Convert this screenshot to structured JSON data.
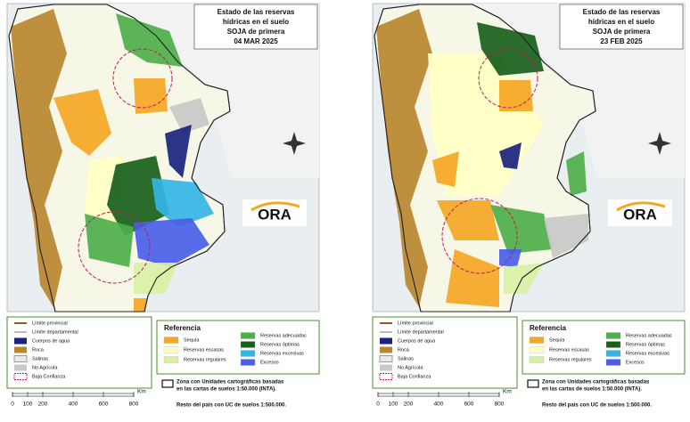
{
  "panels": [
    {
      "title_lines": [
        "Estado de las reservas",
        "hídricas en el suelo",
        "SOJA de primera",
        "04 MAR 2025"
      ]
    },
    {
      "title_lines": [
        "Estado de las reservas",
        "hídricas en el suelo",
        "SOJA de primera",
        "23 FEB 2025"
      ]
    }
  ],
  "logo": "ORA",
  "legend_base": [
    "Límite provincial",
    "Límite departamental",
    "Cuerpos de agua",
    "Roca",
    "Salinas",
    "No Agrícola",
    "Baja Confianza"
  ],
  "legend_reference": {
    "title": "Referencia",
    "items": [
      "Sequía",
      "Reservas escasas",
      "Reservas regulares",
      "Reservas adecuadas",
      "Reservas óptimas",
      "Reservas excesivas",
      "Excesos"
    ]
  },
  "scale_bar": {
    "ticks": [
      0,
      100,
      200,
      400,
      600,
      800
    ],
    "unit": "Km"
  },
  "note": {
    "box_lines": [
      "Zona con Unidades cartográficas basadas",
      "en las cartas de suelos 1:50.000 (INTA)."
    ],
    "rest": "Resto del país con UC de suelos 1:500.000."
  }
}
